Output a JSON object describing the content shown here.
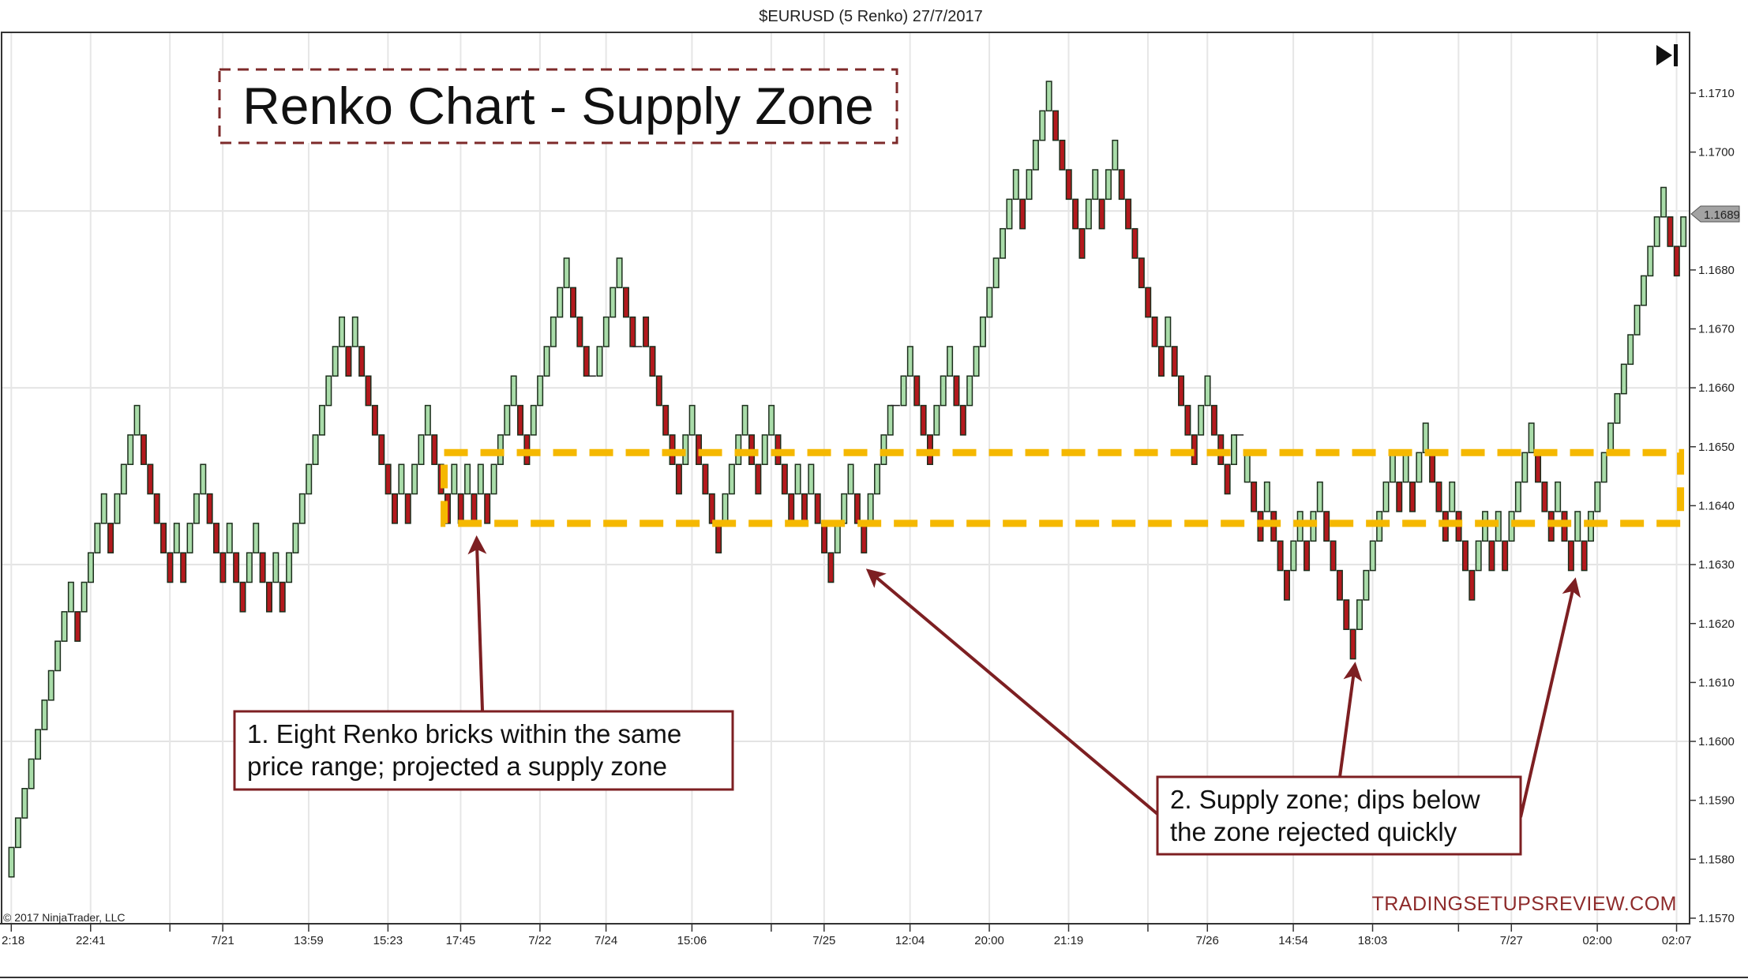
{
  "window": {
    "title": "$EURUSD (5 Renko)  27/7/2017"
  },
  "toolbar": {
    "skip_icon": "skip-to-end-icon"
  },
  "copyright": "© 2017 NinjaTrader, LLC",
  "watermark": "TRADINGSETUPSREVIEW.COM",
  "chart_data": {
    "type": "bar",
    "style": "renko",
    "title": "Renko Chart - Supply Zone",
    "brick_size": 0.0005,
    "colors": {
      "up": "#a9dca9",
      "down": "#b3191d",
      "outline": "#1c2e1c",
      "zone": "#f5b800",
      "annotation": "#7d1f22"
    },
    "grid": true,
    "ylim": [
      1.1565,
      1.1724
    ],
    "y_ticks": [
      "1.1710",
      "1.1700",
      "1.1680",
      "1.1670",
      "1.1660",
      "1.1650",
      "1.1640",
      "1.1630",
      "1.1620",
      "1.1610",
      "1.1600",
      "1.1590",
      "1.1580",
      "1.1570"
    ],
    "h_grid": [
      1.169,
      1.166,
      1.163,
      1.16
    ],
    "last_price": "1.1689",
    "x_ticks": [
      {
        "label": "2:18",
        "bar": 0
      },
      {
        "label": "22:41",
        "bar": 12
      },
      {
        "label": "",
        "bar": 24
      },
      {
        "label": "7/21",
        "bar": 32
      },
      {
        "label": "13:59",
        "bar": 45
      },
      {
        "label": "15:23",
        "bar": 57
      },
      {
        "label": "17:45",
        "bar": 68
      },
      {
        "label": "7/22",
        "bar": 80
      },
      {
        "label": "7/24",
        "bar": 90
      },
      {
        "label": "15:06",
        "bar": 103
      },
      {
        "label": "",
        "bar": 115
      },
      {
        "label": "7/25",
        "bar": 123
      },
      {
        "label": "12:04",
        "bar": 136
      },
      {
        "label": "20:00",
        "bar": 148
      },
      {
        "label": "21:19",
        "bar": 160
      },
      {
        "label": "",
        "bar": 172
      },
      {
        "label": "7/26",
        "bar": 181
      },
      {
        "label": "14:54",
        "bar": 194
      },
      {
        "label": "18:03",
        "bar": 206
      },
      {
        "label": "",
        "bar": 219
      },
      {
        "label": "7/27",
        "bar": 227
      },
      {
        "label": "02:00",
        "bar": 240
      },
      {
        "label": "02:07",
        "bar": 252
      }
    ],
    "brick_lows": [
      1.1577,
      1.1582,
      1.1587,
      1.1592,
      1.1597,
      1.1602,
      1.1607,
      1.1612,
      1.1617,
      1.1622,
      1.1617,
      1.1622,
      1.1627,
      1.1632,
      1.1637,
      1.1632,
      1.1637,
      1.1642,
      1.1647,
      1.1652,
      1.1647,
      1.1642,
      1.1637,
      1.1632,
      1.1627,
      1.1632,
      1.1627,
      1.1632,
      1.1637,
      1.1642,
      1.1637,
      1.1632,
      1.1627,
      1.1632,
      1.1627,
      1.1622,
      1.1627,
      1.1632,
      1.1627,
      1.1622,
      1.1627,
      1.1622,
      1.1627,
      1.1632,
      1.1637,
      1.1642,
      1.1647,
      1.1652,
      1.1657,
      1.1662,
      1.1667,
      1.1662,
      1.1667,
      1.1662,
      1.1657,
      1.1652,
      1.1647,
      1.1642,
      1.1637,
      1.1642,
      1.1637,
      1.1642,
      1.1647,
      1.1652,
      1.1647,
      1.1642,
      1.1637,
      1.1642,
      1.1637,
      1.1642,
      1.1637,
      1.1642,
      1.1637,
      1.1642,
      1.1647,
      1.1652,
      1.1657,
      1.1652,
      1.1647,
      1.1652,
      1.1657,
      1.1662,
      1.1667,
      1.1672,
      1.1677,
      1.1672,
      1.1667,
      1.1662,
      null,
      1.1662,
      1.1667,
      1.1672,
      1.1677,
      1.1672,
      1.1667,
      null,
      1.1667,
      1.1662,
      1.1657,
      1.1652,
      1.1647,
      1.1642,
      1.1647,
      1.1652,
      1.1647,
      1.1642,
      1.1637,
      1.1632,
      1.1637,
      1.1642,
      1.1647,
      1.1652,
      1.1647,
      1.1642,
      1.1647,
      1.1652,
      1.1647,
      1.1642,
      1.1637,
      1.1642,
      1.1637,
      1.1642,
      1.1637,
      1.1632,
      1.1627,
      1.1632,
      1.1637,
      1.1642,
      1.1637,
      1.1632,
      1.1637,
      1.1642,
      1.1647,
      1.1652,
      null,
      1.1657,
      1.1662,
      1.1657,
      1.1652,
      1.1647,
      1.1652,
      1.1657,
      1.1662,
      1.1657,
      1.1652,
      1.1657,
      1.1662,
      1.1667,
      1.1672,
      1.1677,
      1.1682,
      1.1687,
      1.1692,
      1.1687,
      1.1692,
      1.1697,
      1.1702,
      1.1707,
      1.1702,
      1.1697,
      1.1692,
      1.1687,
      1.1682,
      1.1687,
      1.1692,
      1.1687,
      1.1692,
      1.1697,
      1.1692,
      1.1687,
      1.1682,
      1.1677,
      1.1672,
      1.1667,
      1.1662,
      1.1667,
      1.1662,
      1.1657,
      1.1652,
      1.1647,
      1.1652,
      1.1657,
      1.1652,
      1.1647,
      1.1642,
      1.1647,
      null,
      1.1644,
      1.1639,
      1.1634,
      1.1639,
      1.1634,
      1.1629,
      1.1624,
      1.1629,
      1.1634,
      1.1629,
      1.1634,
      1.1639,
      1.1634,
      1.1629,
      1.1624,
      1.1619,
      1.1614,
      1.1619,
      1.1624,
      1.1629,
      1.1634,
      1.1639,
      1.1644,
      1.1639,
      1.1644,
      1.1639,
      1.1644,
      1.1649,
      1.1644,
      1.1639,
      1.1634,
      1.1639,
      1.1634,
      1.1629,
      1.1624,
      1.1629,
      1.1634,
      1.1629,
      1.1634,
      1.1629,
      1.1634,
      1.1639,
      1.1644,
      1.1649,
      1.1644,
      1.1639,
      1.1634,
      1.1639,
      1.1634,
      1.1629,
      1.1634,
      1.1629,
      1.1634,
      1.1639,
      1.1644,
      1.1649,
      1.1654,
      1.1659,
      1.1664,
      1.1669,
      1.1674,
      1.1679,
      1.1684,
      1.1689,
      1.1684,
      1.1679,
      1.1684
    ],
    "brick_directions": "UUUUUUUUUUDUUUUDUUUUDDDDDUDUUUDDDUDDUUDDUDUUUUUUUUUDUDDDDDDUDUUUDDDUDUDUDUUUUDDUUUUUUDDD-UUUUDD-DDDDDDUUDDDDUUUUDDUUDDDUDUDDDUUUDDUUUU-UUDDDUUUDDUUUUUUUUDUUUUDDDDDUUDUUDDDDDDDUDDDDUUDDDU-UDDUDDDUUDUUDDDDDUUUUUUDUDUUDDDUDDDUUDUDUUUUDDDUDDUDUUUUUUUUUUUUDDU",
    "supply_zone": {
      "top": 1.1649,
      "bottom": 1.1637,
      "start_bar": 65.5,
      "end_bar": 252.6
    },
    "annotations": [
      {
        "lines": [
          "1. Eight Renko bricks within the same",
          "price range; projected a supply zone"
        ]
      },
      {
        "lines": [
          "2. Supply zone; dips below",
          "the zone rejected quickly"
        ]
      }
    ]
  }
}
